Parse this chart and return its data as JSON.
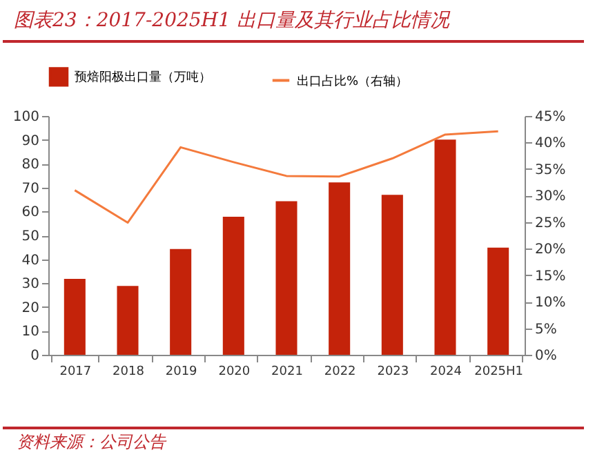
{
  "chart_data": {
    "type": "bar",
    "title": "图表23：2017-2025H1 出口量及其行业占比情况",
    "categories": [
      "2017",
      "2018",
      "2019",
      "2020",
      "2021",
      "2022",
      "2023",
      "2024",
      "2025H1"
    ],
    "series": [
      {
        "name": "预焙阳极出口量（万吨）",
        "color": "#c4230a",
        "values": [
          31.8,
          28.8,
          44.3,
          57.8,
          64.3,
          72.2,
          67.0,
          90.1,
          44.9
        ]
      },
      {
        "name": "出口占比%（右轴）",
        "type": "line",
        "axis": "y2",
        "color": "#f47a3c",
        "values": [
          31.0,
          24.9,
          39.1,
          36.3,
          33.7,
          33.6,
          37.0,
          41.5,
          42.1
        ]
      }
    ],
    "ylim": [
      0,
      100
    ],
    "yticks": [
      0,
      10,
      20,
      30,
      40,
      50,
      60,
      70,
      80,
      90,
      100
    ],
    "y2lim": [
      0,
      45
    ],
    "y2ticks": [
      {
        "value": 0,
        "label": "0%"
      },
      {
        "value": 5,
        "label": "5%"
      },
      {
        "value": 10,
        "label": "10%"
      },
      {
        "value": 15,
        "label": "15%"
      },
      {
        "value": 20,
        "label": "20%"
      },
      {
        "value": 25,
        "label": "25%"
      },
      {
        "value": 30,
        "label": "30%"
      },
      {
        "value": 35,
        "label": "35%"
      },
      {
        "value": 40,
        "label": "40%"
      },
      {
        "value": 45,
        "label": "45%"
      }
    ],
    "annotations": [
      "资料来源：公司公告"
    ],
    "grid": false,
    "legend": "top"
  }
}
